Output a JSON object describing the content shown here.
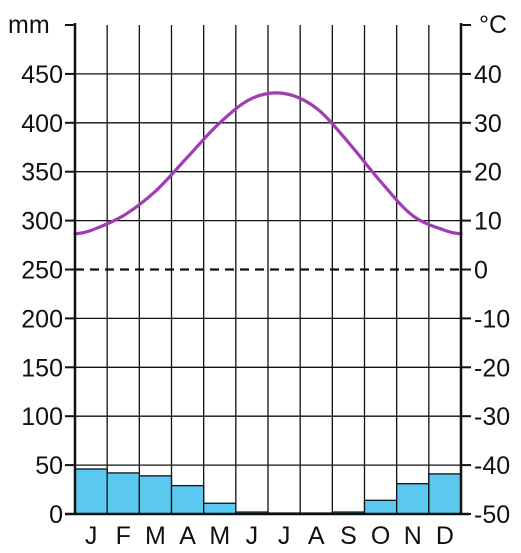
{
  "chart_data": {
    "type": "climate-diagram",
    "title": "",
    "categories": [
      "J",
      "F",
      "M",
      "A",
      "M",
      "J",
      "J",
      "A",
      "S",
      "O",
      "N",
      "D"
    ],
    "series": [
      {
        "kind": "bar",
        "axis": "left",
        "values": [
          46,
          42,
          39,
          29,
          11,
          2,
          1,
          1,
          2,
          14,
          31,
          41
        ],
        "color": "#5bc8f0"
      },
      {
        "kind": "line",
        "axis": "right",
        "values": [
          8,
          11,
          16,
          23,
          30,
          35,
          36,
          33,
          26,
          18,
          11,
          8
        ],
        "color": "#a03cb4"
      }
    ],
    "left_axis": {
      "unit": "mm",
      "range": [
        0,
        500
      ],
      "ticks": [
        "0",
        "50",
        "100",
        "150",
        "200",
        "250",
        "300",
        "350",
        "400",
        "450"
      ]
    },
    "right_axis": {
      "unit": "°C",
      "range": [
        -50,
        50
      ],
      "ticks": [
        "-50",
        "-40",
        "-30",
        "-20",
        "-10",
        "0",
        "10",
        "20",
        "30",
        "40"
      ]
    },
    "reference_line": {
      "axis": "right",
      "value": 0,
      "style": "dashed"
    },
    "grid": true,
    "legend": "none"
  }
}
